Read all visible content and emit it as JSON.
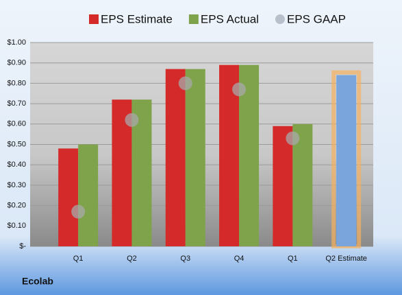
{
  "chart_data": {
    "type": "bar",
    "title": "Ecolab",
    "categories": [
      "Q1",
      "Q2",
      "Q3",
      "Q4",
      "Q1",
      "Q2 Estimate"
    ],
    "series": [
      {
        "name": "EPS Estimate",
        "color": "#d42a2a",
        "colors": [
          "#d42a2a",
          "#d42a2a",
          "#d42a2a",
          "#d42a2a",
          "#d42a2a",
          "#7aa4dc"
        ],
        "values": [
          0.48,
          0.72,
          0.87,
          0.89,
          0.59,
          0.84
        ]
      },
      {
        "name": "EPS Actual",
        "color": "#7fa34b",
        "values": [
          0.5,
          0.72,
          0.87,
          0.89,
          0.6,
          null
        ]
      },
      {
        "name": "EPS GAAP",
        "color": "#b8c0cc",
        "marker": "circle",
        "values": [
          0.17,
          0.62,
          0.8,
          0.77,
          0.53,
          null
        ]
      }
    ],
    "ylim": [
      0,
      1
    ],
    "yticks": [
      {
        "value": 0,
        "label": "$-"
      },
      {
        "value": 0.1,
        "label": "$0.10"
      },
      {
        "value": 0.2,
        "label": "$0.20"
      },
      {
        "value": 0.3,
        "label": "$0.30"
      },
      {
        "value": 0.4,
        "label": "$0.40"
      },
      {
        "value": 0.5,
        "label": "$0.50"
      },
      {
        "value": 0.6,
        "label": "$0.60"
      },
      {
        "value": 0.7,
        "label": "$0.70"
      },
      {
        "value": 0.8,
        "label": "$0.80"
      },
      {
        "value": 0.9,
        "label": "$0.90"
      },
      {
        "value": 1,
        "label": "$1.00"
      }
    ],
    "grid": true,
    "legend": "top"
  }
}
